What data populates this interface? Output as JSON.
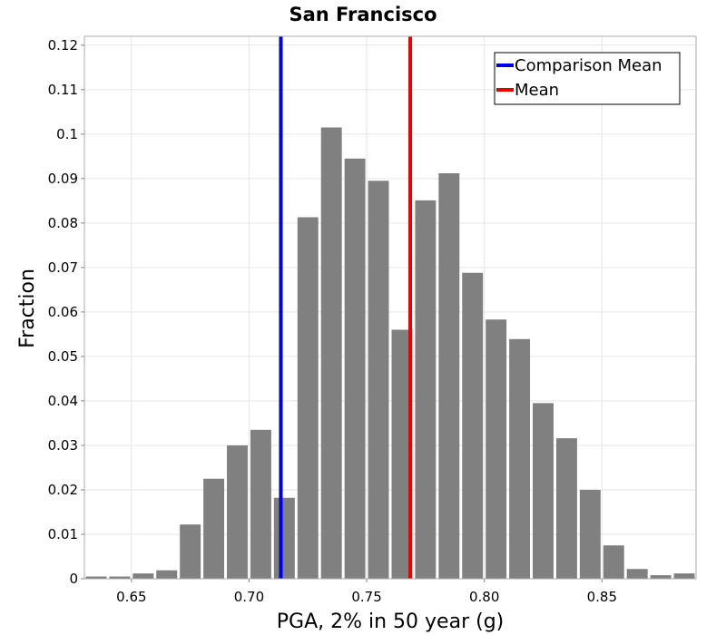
{
  "chart_data": {
    "type": "bar",
    "title": "San Francisco",
    "xlabel": "PGA, 2% in 50 year (g)",
    "ylabel": "Fraction",
    "xlim": [
      0.63,
      0.89
    ],
    "ylim": [
      0,
      0.122
    ],
    "bin_width": 0.01,
    "x_ticks": [
      {
        "value": 0.65,
        "label": "0.65"
      },
      {
        "value": 0.7,
        "label": "0.70"
      },
      {
        "value": 0.75,
        "label": "0.75"
      },
      {
        "value": 0.8,
        "label": "0.80"
      },
      {
        "value": 0.85,
        "label": "0.85"
      }
    ],
    "y_ticks": [
      {
        "value": 0,
        "label": "0"
      },
      {
        "value": 0.01,
        "label": "0.01"
      },
      {
        "value": 0.02,
        "label": "0.02"
      },
      {
        "value": 0.03,
        "label": "0.03"
      },
      {
        "value": 0.04,
        "label": "0.04"
      },
      {
        "value": 0.05,
        "label": "0.05"
      },
      {
        "value": 0.06,
        "label": "0.06"
      },
      {
        "value": 0.07,
        "label": "0.07"
      },
      {
        "value": 0.08,
        "label": "0.08"
      },
      {
        "value": 0.09,
        "label": "0.09"
      },
      {
        "value": 0.1,
        "label": "0.1"
      },
      {
        "value": 0.11,
        "label": "0.11"
      },
      {
        "value": 0.12,
        "label": "0.12"
      }
    ],
    "bins": [
      {
        "x": 0.635,
        "value": 0.0005
      },
      {
        "x": 0.645,
        "value": 0.0005
      },
      {
        "x": 0.655,
        "value": 0.0012
      },
      {
        "x": 0.665,
        "value": 0.0019
      },
      {
        "x": 0.675,
        "value": 0.0122
      },
      {
        "x": 0.685,
        "value": 0.0225
      },
      {
        "x": 0.695,
        "value": 0.03
      },
      {
        "x": 0.705,
        "value": 0.0335
      },
      {
        "x": 0.715,
        "value": 0.0182
      },
      {
        "x": 0.725,
        "value": 0.0813
      },
      {
        "x": 0.735,
        "value": 0.1015
      },
      {
        "x": 0.745,
        "value": 0.0945
      },
      {
        "x": 0.755,
        "value": 0.0895
      },
      {
        "x": 0.765,
        "value": 0.056
      },
      {
        "x": 0.775,
        "value": 0.0851
      },
      {
        "x": 0.785,
        "value": 0.0912
      },
      {
        "x": 0.795,
        "value": 0.0688
      },
      {
        "x": 0.805,
        "value": 0.0583
      },
      {
        "x": 0.815,
        "value": 0.0539
      },
      {
        "x": 0.825,
        "value": 0.0395
      },
      {
        "x": 0.835,
        "value": 0.0316
      },
      {
        "x": 0.845,
        "value": 0.02
      },
      {
        "x": 0.855,
        "value": 0.0075
      },
      {
        "x": 0.865,
        "value": 0.0022
      },
      {
        "x": 0.875,
        "value": 0.0008
      },
      {
        "x": 0.885,
        "value": 0.0012
      }
    ],
    "bar_color": "#808080",
    "vlines": [
      {
        "name": "Comparison Mean",
        "x": 0.7135,
        "color": "#0000ee"
      },
      {
        "name": "Mean",
        "x": 0.7685,
        "color": "#ee0000"
      }
    ],
    "legend_position": "top-right",
    "grid": true
  }
}
